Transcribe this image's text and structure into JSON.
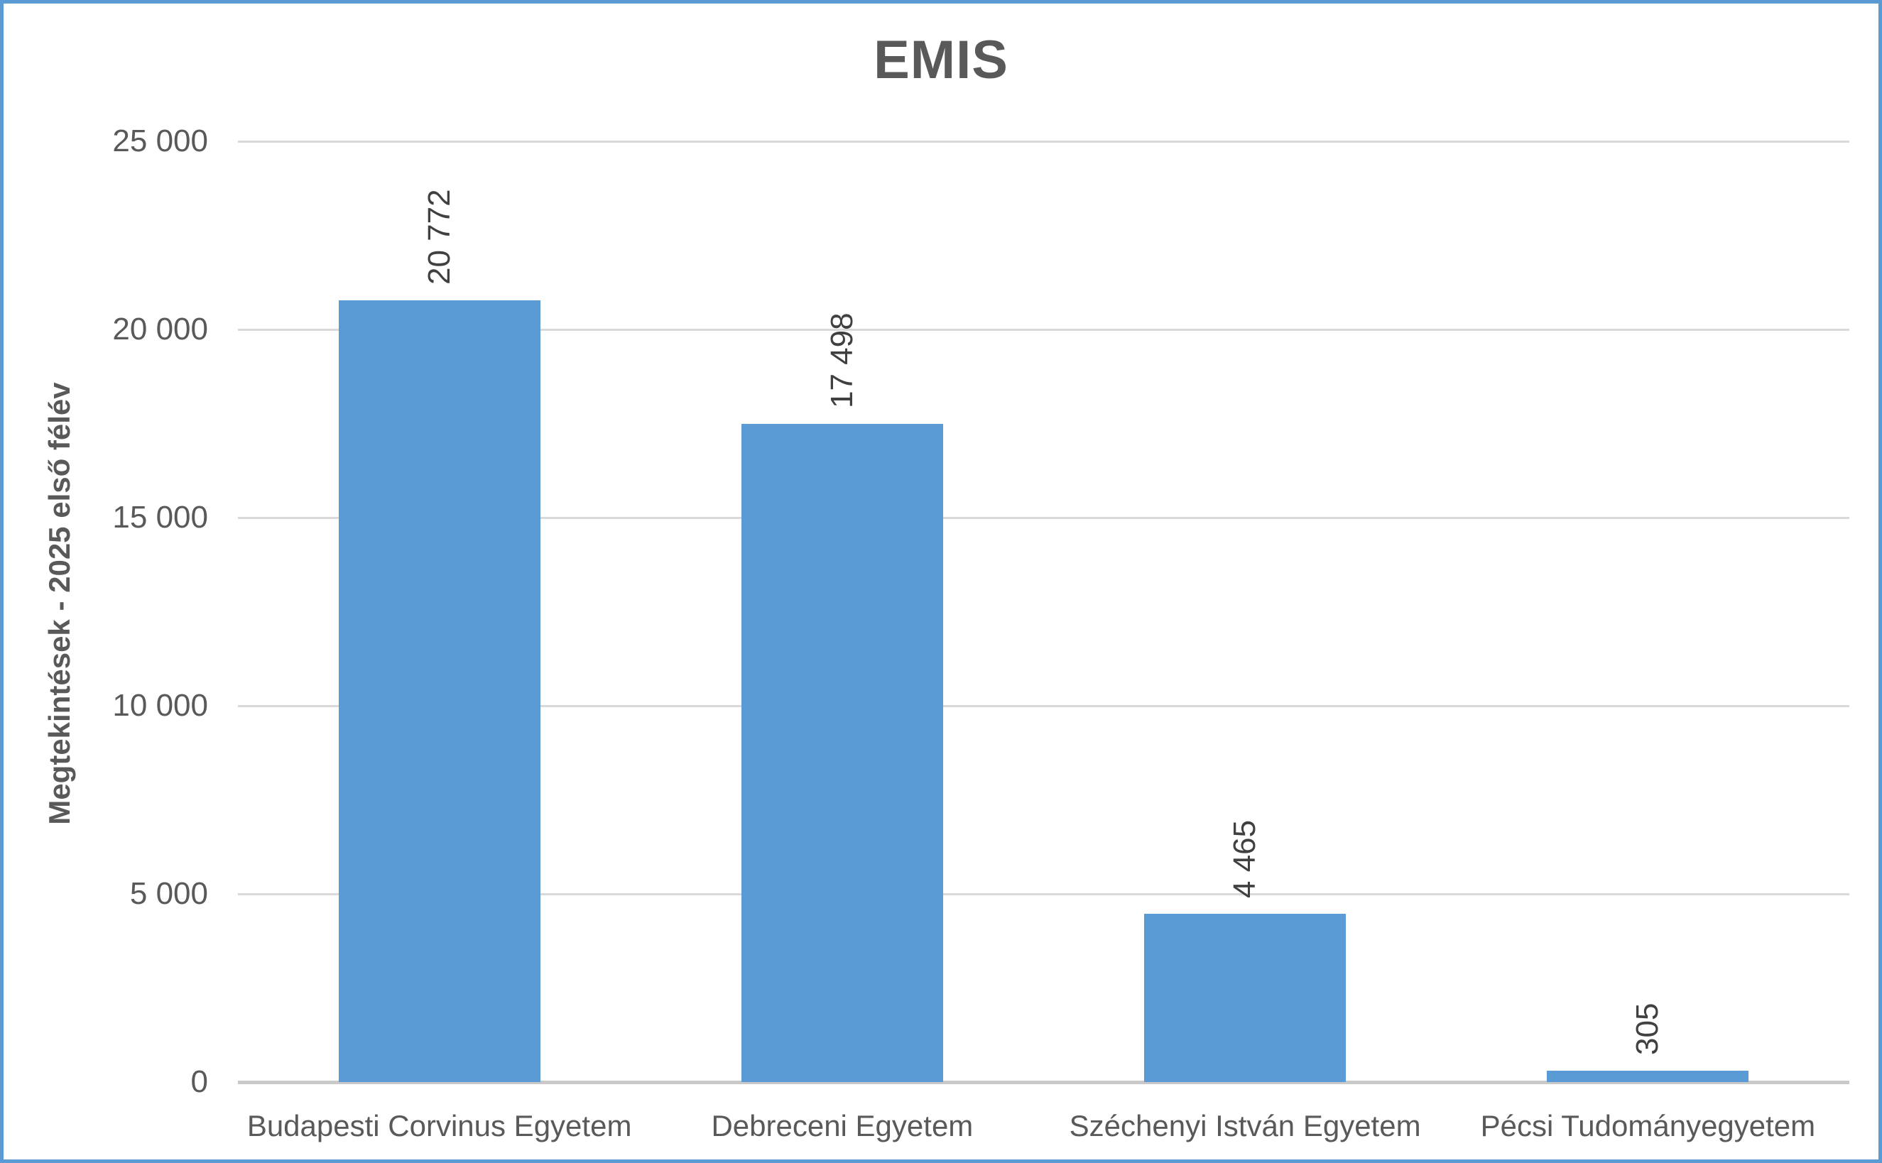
{
  "chart_data": {
    "type": "bar",
    "title": "EMIS",
    "ylabel": "Megtekintések - 2025 első félév",
    "xlabel": "",
    "categories": [
      "Budapesti Corvinus Egyetem",
      "Debreceni Egyetem",
      "Széchenyi István Egyetem",
      "Pécsi Tudományegyetem"
    ],
    "values": [
      20772,
      17498,
      4465,
      305
    ],
    "value_labels": [
      "20 772",
      "17 498",
      "4 465",
      "305"
    ],
    "ylim": [
      0,
      25000
    ],
    "yticks": [
      {
        "value": 0,
        "label": "0"
      },
      {
        "value": 5000,
        "label": "5 000"
      },
      {
        "value": 10000,
        "label": "10 000"
      },
      {
        "value": 15000,
        "label": "15 000"
      },
      {
        "value": 20000,
        "label": "20 000"
      },
      {
        "value": 25000,
        "label": "25 000"
      }
    ],
    "grid": true,
    "legend": false,
    "data_label_rotation": -90,
    "colors": {
      "bar": "#5B9BD5",
      "frame_border": "#5B9BD5",
      "gridline": "#D9D9D9",
      "axis_line": "#C9C9C9",
      "title_text": "#595959",
      "axis_text": "#595959",
      "data_label_text": "#404040",
      "background": "#FFFFFF"
    }
  }
}
